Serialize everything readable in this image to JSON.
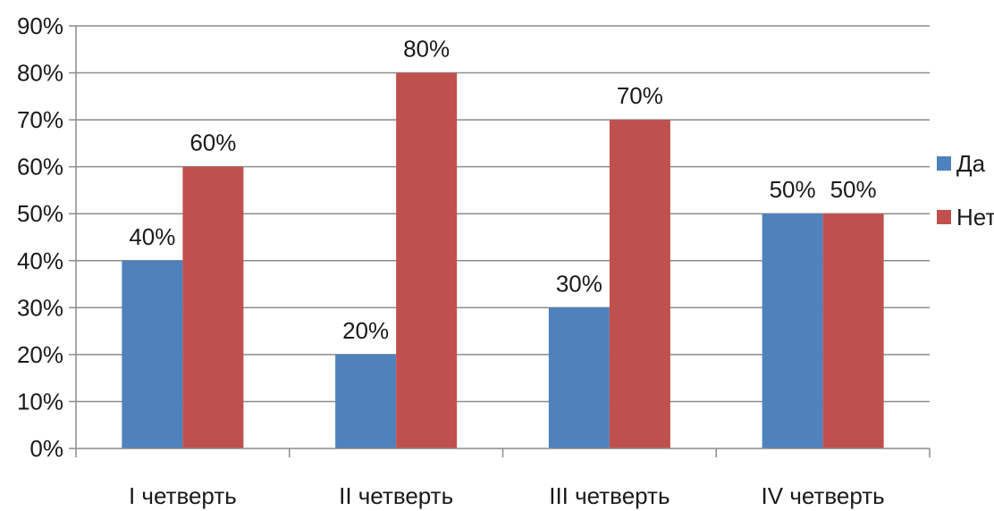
{
  "chart_data": {
    "type": "bar",
    "title": "",
    "xlabel": "",
    "ylabel": "",
    "categories": [
      "I четверть",
      "II четверть",
      "III четверть",
      "IV четверть"
    ],
    "series": [
      {
        "name": "Да",
        "values": [
          40,
          20,
          30,
          50
        ],
        "labels": [
          "40%",
          "20%",
          "30%",
          "50%"
        ],
        "color": "#4f81bd"
      },
      {
        "name": "Нет",
        "values": [
          60,
          80,
          70,
          50
        ],
        "labels": [
          "60%",
          "80%",
          "70%",
          "50%"
        ],
        "color": "#c0504d"
      }
    ],
    "ylim": [
      0,
      90
    ],
    "yticks": [
      0,
      10,
      20,
      30,
      40,
      50,
      60,
      70,
      80,
      90
    ],
    "ytick_labels": [
      "0%",
      "10%",
      "20%",
      "30%",
      "40%",
      "50%",
      "60%",
      "70%",
      "80%",
      "90%"
    ],
    "grid": true,
    "legend_position": "right",
    "colors": {
      "grid": "#8c8c8c",
      "axis": "#8c8c8c"
    }
  }
}
